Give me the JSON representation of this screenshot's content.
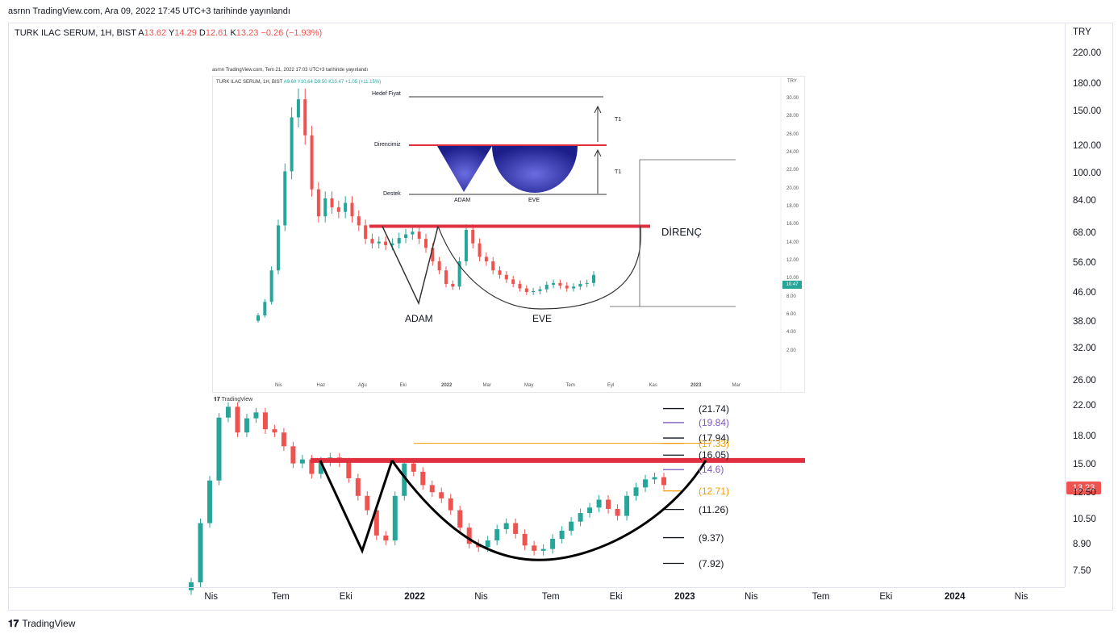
{
  "header": {
    "caption": "asrnn TradingView.com, Ara 09, 2022 17:45 UTC+3 tarihinde yayınlandı"
  },
  "legend": {
    "symbol": "TURK ILAC SERUM, 1H, BIST",
    "a_label": "A",
    "a_value": "13.62",
    "y_label": "Y",
    "y_value": "14.29",
    "d_label": "D",
    "d_value": "12.61",
    "k_label": "K",
    "k_value": "13.23",
    "change": "−0.26 (−1.93%)"
  },
  "price_axis": {
    "currency": "TRY",
    "ticks": [
      "220.00",
      "180.00",
      "150.00",
      "120.00",
      "100.00",
      "84.00",
      "68.00",
      "56.00",
      "46.00",
      "38.00",
      "32.00",
      "26.00",
      "22.00",
      "18.00",
      "15.00",
      "12.50",
      "10.50",
      "8.90",
      "7.50"
    ],
    "last_price": "13.23"
  },
  "time_axis": {
    "ticks": [
      "Nis",
      "Tem",
      "Eki",
      "2022",
      "Nis",
      "Tem",
      "Eki",
      "2023",
      "Nis",
      "Tem",
      "Eki",
      "2024",
      "Nis"
    ]
  },
  "levels": [
    {
      "label": "(21.74)",
      "color": "#131722"
    },
    {
      "label": "(19.84)",
      "color": "#7e57c2"
    },
    {
      "label": "(17.94)",
      "color": "#131722"
    },
    {
      "label": "(17.33)",
      "color": "#f59d00"
    },
    {
      "label": "(16.05)",
      "color": "#131722"
    },
    {
      "label": "(14.6)",
      "color": "#7e57c2"
    },
    {
      "label": "(12.71)",
      "color": "#f59d00"
    },
    {
      "label": "(11.26)",
      "color": "#131722"
    },
    {
      "label": "(9.37)",
      "color": "#131722"
    },
    {
      "label": "(7.92)",
      "color": "#131722"
    }
  ],
  "footer": {
    "brand": "TradingView"
  },
  "inset": {
    "caption": "asrnn TradingView.com, Tem 21, 2022 17:03 UTC+3 tarihinde yayınlandı",
    "legend_symbol": "TURK ILAC SERUM, 1H, BIST",
    "legend_values": "A9.60 Y10.64 D9.50 K10.47 +1.05 (+11.15%)",
    "currency": "TRY",
    "price_ticks": [
      "30.00",
      "28.00",
      "26.00",
      "24.00",
      "22.00",
      "20.00",
      "18.00",
      "16.00",
      "14.00",
      "12.00",
      "10.00",
      "8.00",
      "6.00",
      "4.00",
      "2.00"
    ],
    "last_price": "10.47",
    "time_ticks": [
      "Nis",
      "Haz",
      "Ağu",
      "Eki",
      "2022",
      "Mar",
      "May",
      "Tem",
      "Eyl",
      "Kas",
      "2023",
      "Mar"
    ],
    "brand": "TradingView",
    "diagram": {
      "target_label": "Hedef Fiyat",
      "resistance_label": "Direncimiz",
      "support_label": "Destek",
      "cup_label": "ADAM",
      "handle_label": "EVE",
      "t1_upper": "T1",
      "t1_lower": "T1"
    },
    "annotations": {
      "resistance": "DİRENÇ",
      "left_pattern": "ADAM",
      "right_pattern": "EVE"
    }
  },
  "colors": {
    "up": "#26a69a",
    "down": "#ef5350",
    "resistance": "#e03040",
    "orange": "#f59d00",
    "purple": "#7e57c2"
  },
  "chart_data": [
    {
      "type": "candlestick",
      "title": "TURK ILAC SERUM, 1H, BIST",
      "scale": "log",
      "ylim": [
        7.0,
        240.0
      ],
      "x_ticks": [
        "Nis",
        "Tem",
        "Eki",
        "2022",
        "Nis",
        "Tem",
        "Eki",
        "2023",
        "Nis",
        "Tem",
        "Eki",
        "2024",
        "Nis"
      ],
      "y_ticks": [
        220,
        180,
        150,
        120,
        100,
        84,
        68,
        56,
        46,
        38,
        32,
        26,
        22,
        18,
        15,
        12.5,
        10.5,
        8.9,
        7.5
      ],
      "ohlc_last": {
        "open": 13.62,
        "high": 14.29,
        "low": 12.61,
        "close": 13.23,
        "change": -0.26,
        "change_pct": -1.93
      },
      "resistance": 15.5,
      "levels": [
        21.74,
        19.84,
        17.94,
        17.33,
        16.05,
        14.6,
        12.71,
        11.26,
        9.37,
        7.92
      ],
      "series_close": [
        7.0,
        10.3,
        13.6,
        20.5,
        22.0,
        18.6,
        20.4,
        21.2,
        19.0,
        18.6,
        17.0,
        15.2,
        15.6,
        14.2,
        15.4,
        15.8,
        15.3,
        13.8,
        12.3,
        11.2,
        9.5,
        9.2,
        12.3,
        15.2,
        14.4,
        13.2,
        12.6,
        12.1,
        11.2,
        10.0,
        9.0,
        8.8,
        9.2,
        9.9,
        10.3,
        9.6,
        8.9,
        8.6,
        8.7,
        9.3,
        9.8,
        10.4,
        11.0,
        11.4,
        12.0,
        11.3,
        10.8,
        12.3,
        13.0,
        13.7,
        13.9,
        13.2
      ]
    },
    {
      "type": "candlestick",
      "title": "TURK ILAC SERUM, 1H, BIST",
      "ylim": [
        0,
        31
      ],
      "y_ticks": [
        30,
        28,
        26,
        24,
        22,
        20,
        18,
        16,
        14,
        12,
        10,
        8,
        6,
        4,
        2
      ],
      "x_ticks": [
        "Nis",
        "Haz",
        "Ağu",
        "Eki",
        "2022",
        "Mar",
        "May",
        "Tem",
        "Eyl",
        "Kas",
        "2023",
        "Mar"
      ],
      "ohlc_last": {
        "open": 9.6,
        "high": 10.64,
        "low": 9.5,
        "close": 10.47,
        "change": 1.05,
        "change_pct": 11.15
      },
      "resistance": 15.9,
      "series_close": [
        6.0,
        7.5,
        11.0,
        16.0,
        22.0,
        28.0,
        30.0,
        26.0,
        20.0,
        17.0,
        19.0,
        18.0,
        17.5,
        18.5,
        17.0,
        16.0,
        14.5,
        14.0,
        14.2,
        13.8,
        14.0,
        14.6,
        15.0,
        15.3,
        14.5,
        13.5,
        12.0,
        11.0,
        9.5,
        9.2,
        12.0,
        15.5,
        14.0,
        12.5,
        12.0,
        11.0,
        10.5,
        10.0,
        9.5,
        9.0,
        8.6,
        8.7,
        8.9,
        9.4,
        9.6,
        9.3,
        9.0,
        9.2,
        9.5,
        9.6,
        10.5
      ]
    }
  ]
}
